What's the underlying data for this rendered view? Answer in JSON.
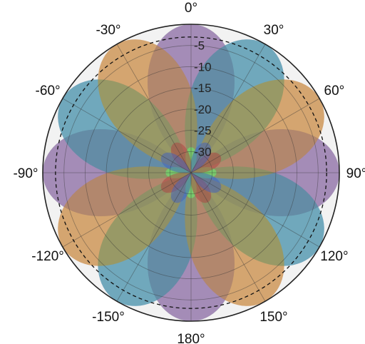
{
  "chart_data": {
    "type": "polar-area",
    "r_range": [
      -35,
      0
    ],
    "r_ticks": [
      -30,
      -25,
      -20,
      -15,
      -10,
      -5
    ],
    "r_tick_labels": [
      "-30",
      "-25",
      "-20",
      "-15",
      "-10",
      "-5"
    ],
    "angle_ticks": [
      0,
      30,
      60,
      90,
      120,
      150,
      180,
      -150,
      -120,
      -90,
      -60,
      -30
    ],
    "angle_tick_labels": [
      "0°",
      "30°",
      "60°",
      "90°",
      "120°",
      "150°",
      "180°",
      "-150°",
      "-120°",
      "-90°",
      "-60°",
      "-30°"
    ],
    "zero_direction": "top",
    "angle_direction": "clockwise",
    "grid": true,
    "reference_circle": {
      "r": -3,
      "style": "dashed"
    },
    "series": [
      {
        "color": "#6fe06f",
        "opacity": 0.55,
        "pattern": {
          "n": 2,
          "phase_deg": 0,
          "floor": -36
        }
      },
      {
        "color": "#7070ff",
        "opacity": 0.5,
        "pattern": {
          "n": 2,
          "phase_deg": -60,
          "floor": -36
        }
      },
      {
        "color": "#ff7070",
        "opacity": 0.5,
        "pattern": {
          "n": 2,
          "phase_deg": 60,
          "floor": -36
        }
      },
      {
        "color": "#a04fc0",
        "opacity": 0.6,
        "pattern": {
          "n": 2,
          "phase_deg": 90,
          "floor": -36
        }
      },
      {
        "color": "#3aa08a",
        "opacity": 0.55,
        "pattern": {
          "n": 2,
          "phase_deg": 30,
          "floor": -36
        }
      },
      {
        "color": "#b09a30",
        "opacity": 0.5,
        "pattern": {
          "n": 2,
          "phase_deg": -30,
          "floor": -36
        }
      },
      {
        "color": "#6fe06f",
        "opacity": 0.7,
        "pattern": {
          "n": 2,
          "phase_deg": 90,
          "floor": -40,
          "peak": -29
        }
      },
      {
        "color": "#b04040",
        "opacity": 0.5,
        "pattern": {
          "n": 2,
          "phase_deg": 150,
          "floor": -40,
          "peak": -27
        }
      },
      {
        "color": "#4060c0",
        "opacity": 0.5,
        "pattern": {
          "n": 2,
          "phase_deg": 30,
          "floor": -40,
          "peak": -27
        }
      }
    ]
  }
}
